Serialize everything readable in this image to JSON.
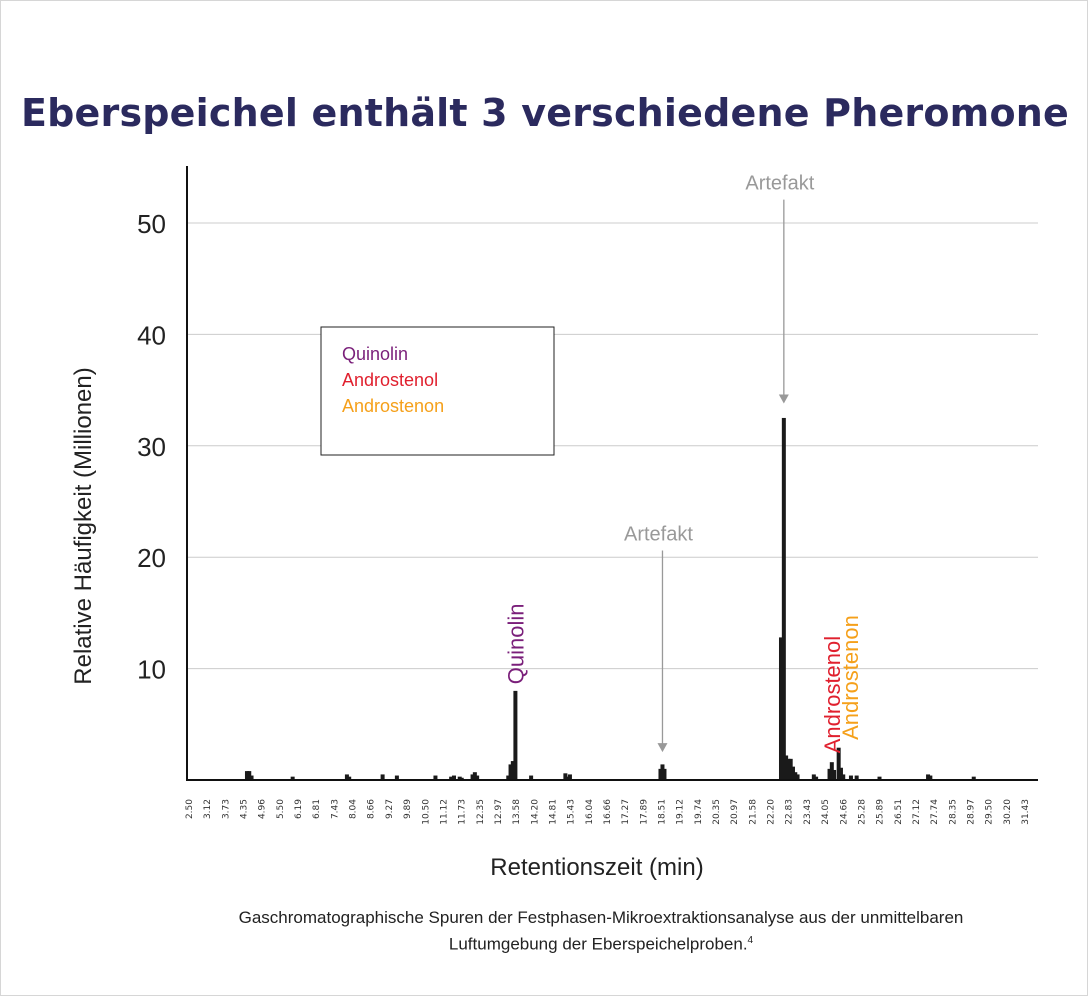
{
  "title": "Eberspeichel enthält 3 verschiedene Pheromone",
  "caption": "Gaschromatographische Spuren der Festphasen-Mikroextraktionsanalyse aus der unmittelbaren Luftumgebung der Eberspeichelproben.",
  "caption_ref": "4",
  "colors": {
    "title": "#2b2a5e",
    "bars": "#1a1a1a",
    "grid": "#cccccc",
    "annotation": "#999999",
    "quinolin": "#7a1f7a",
    "androstenol": "#e0202e",
    "androstenon": "#f5a01a"
  },
  "chart_data": {
    "type": "bar",
    "xlabel": "Retentionszeit (min)",
    "ylabel": "Relative Häufigkeit (Millionen)",
    "ylim": [
      0,
      55
    ],
    "xlim": [
      2.5,
      32.3
    ],
    "yticks": [
      10,
      20,
      30,
      40,
      50
    ],
    "xticks": [
      "2.50",
      "3.12",
      "3.73",
      "4.35",
      "4.96",
      "5.50",
      "6.19",
      "6.81",
      "7.43",
      "8.04",
      "8.66",
      "9.27",
      "9.89",
      "10.50",
      "11.12",
      "11.73",
      "12.35",
      "12.97",
      "13.58",
      "14.20",
      "14.81",
      "15.43",
      "16.04",
      "16.66",
      "17.27",
      "17.89",
      "18.51",
      "19.12",
      "19.74",
      "20.35",
      "20.97",
      "21.58",
      "22.20",
      "22.83",
      "23.43",
      "24.05",
      "24.66",
      "25.28",
      "25.89",
      "26.51",
      "27.12",
      "27.74",
      "28.35",
      "28.97",
      "29.50",
      "30.20",
      "31.43"
    ],
    "grid": true,
    "legend": {
      "position": "upper-left",
      "entries": [
        {
          "name": "Quinolin",
          "color": "#7a1f7a"
        },
        {
          "name": "Androstenol",
          "color": "#e0202e"
        },
        {
          "name": "Androstenon",
          "color": "#f5a01a"
        }
      ]
    },
    "peaks": [
      {
        "x": 4.6,
        "y": 0.8
      },
      {
        "x": 4.68,
        "y": 0.8
      },
      {
        "x": 4.76,
        "y": 0.4
      },
      {
        "x": 6.2,
        "y": 0.3
      },
      {
        "x": 8.1,
        "y": 0.5
      },
      {
        "x": 8.18,
        "y": 0.3
      },
      {
        "x": 9.35,
        "y": 0.5
      },
      {
        "x": 9.85,
        "y": 0.4
      },
      {
        "x": 11.2,
        "y": 0.4
      },
      {
        "x": 11.75,
        "y": 0.3
      },
      {
        "x": 11.85,
        "y": 0.4
      },
      {
        "x": 12.05,
        "y": 0.3
      },
      {
        "x": 12.12,
        "y": 0.2
      },
      {
        "x": 12.5,
        "y": 0.5
      },
      {
        "x": 12.58,
        "y": 0.7
      },
      {
        "x": 12.66,
        "y": 0.4
      },
      {
        "x": 13.75,
        "y": 0.4
      },
      {
        "x": 13.83,
        "y": 1.4
      },
      {
        "x": 13.91,
        "y": 1.7
      },
      {
        "x": 14.0,
        "y": 8.0
      },
      {
        "x": 14.55,
        "y": 0.4
      },
      {
        "x": 15.75,
        "y": 0.6
      },
      {
        "x": 15.83,
        "y": 0.3
      },
      {
        "x": 15.91,
        "y": 0.5
      },
      {
        "x": 19.08,
        "y": 1.0
      },
      {
        "x": 19.15,
        "y": 1.4
      },
      {
        "x": 19.22,
        "y": 1.0
      },
      {
        "x": 23.3,
        "y": 12.8
      },
      {
        "x": 23.4,
        "y": 32.5
      },
      {
        "x": 23.48,
        "y": 2.2
      },
      {
        "x": 23.56,
        "y": 1.9
      },
      {
        "x": 23.64,
        "y": 1.9
      },
      {
        "x": 23.72,
        "y": 1.2
      },
      {
        "x": 23.8,
        "y": 0.7
      },
      {
        "x": 23.88,
        "y": 0.5
      },
      {
        "x": 24.45,
        "y": 0.5
      },
      {
        "x": 24.53,
        "y": 0.3
      },
      {
        "x": 25.0,
        "y": 1.0
      },
      {
        "x": 25.08,
        "y": 1.6
      },
      {
        "x": 25.16,
        "y": 0.9
      },
      {
        "x": 25.32,
        "y": 2.9
      },
      {
        "x": 25.4,
        "y": 1.1
      },
      {
        "x": 25.48,
        "y": 0.5
      },
      {
        "x": 25.75,
        "y": 0.4
      },
      {
        "x": 25.95,
        "y": 0.4
      },
      {
        "x": 26.75,
        "y": 0.3
      },
      {
        "x": 28.45,
        "y": 0.5
      },
      {
        "x": 28.53,
        "y": 0.4
      },
      {
        "x": 30.05,
        "y": 0.3
      }
    ],
    "annotations": [
      {
        "text": "Artefakt",
        "x": 23.4,
        "y_text": 53,
        "y_arrow": 33.8,
        "kind": "artefact"
      },
      {
        "text": "Artefakt",
        "x": 19.15,
        "y_text": 21.5,
        "y_arrow": 2.5,
        "kind": "artefact"
      },
      {
        "text": "Quinolin",
        "x": 14.0,
        "y_base": 8.6,
        "kind": "compound",
        "color": "#7a1f7a"
      },
      {
        "text": "Androstenol",
        "x": 25.08,
        "y_base": 2.4,
        "kind": "compound",
        "color": "#e0202e"
      },
      {
        "text": "Androstenon",
        "x": 25.72,
        "y_base": 3.6,
        "kind": "compound",
        "color": "#f5a01a"
      }
    ]
  }
}
